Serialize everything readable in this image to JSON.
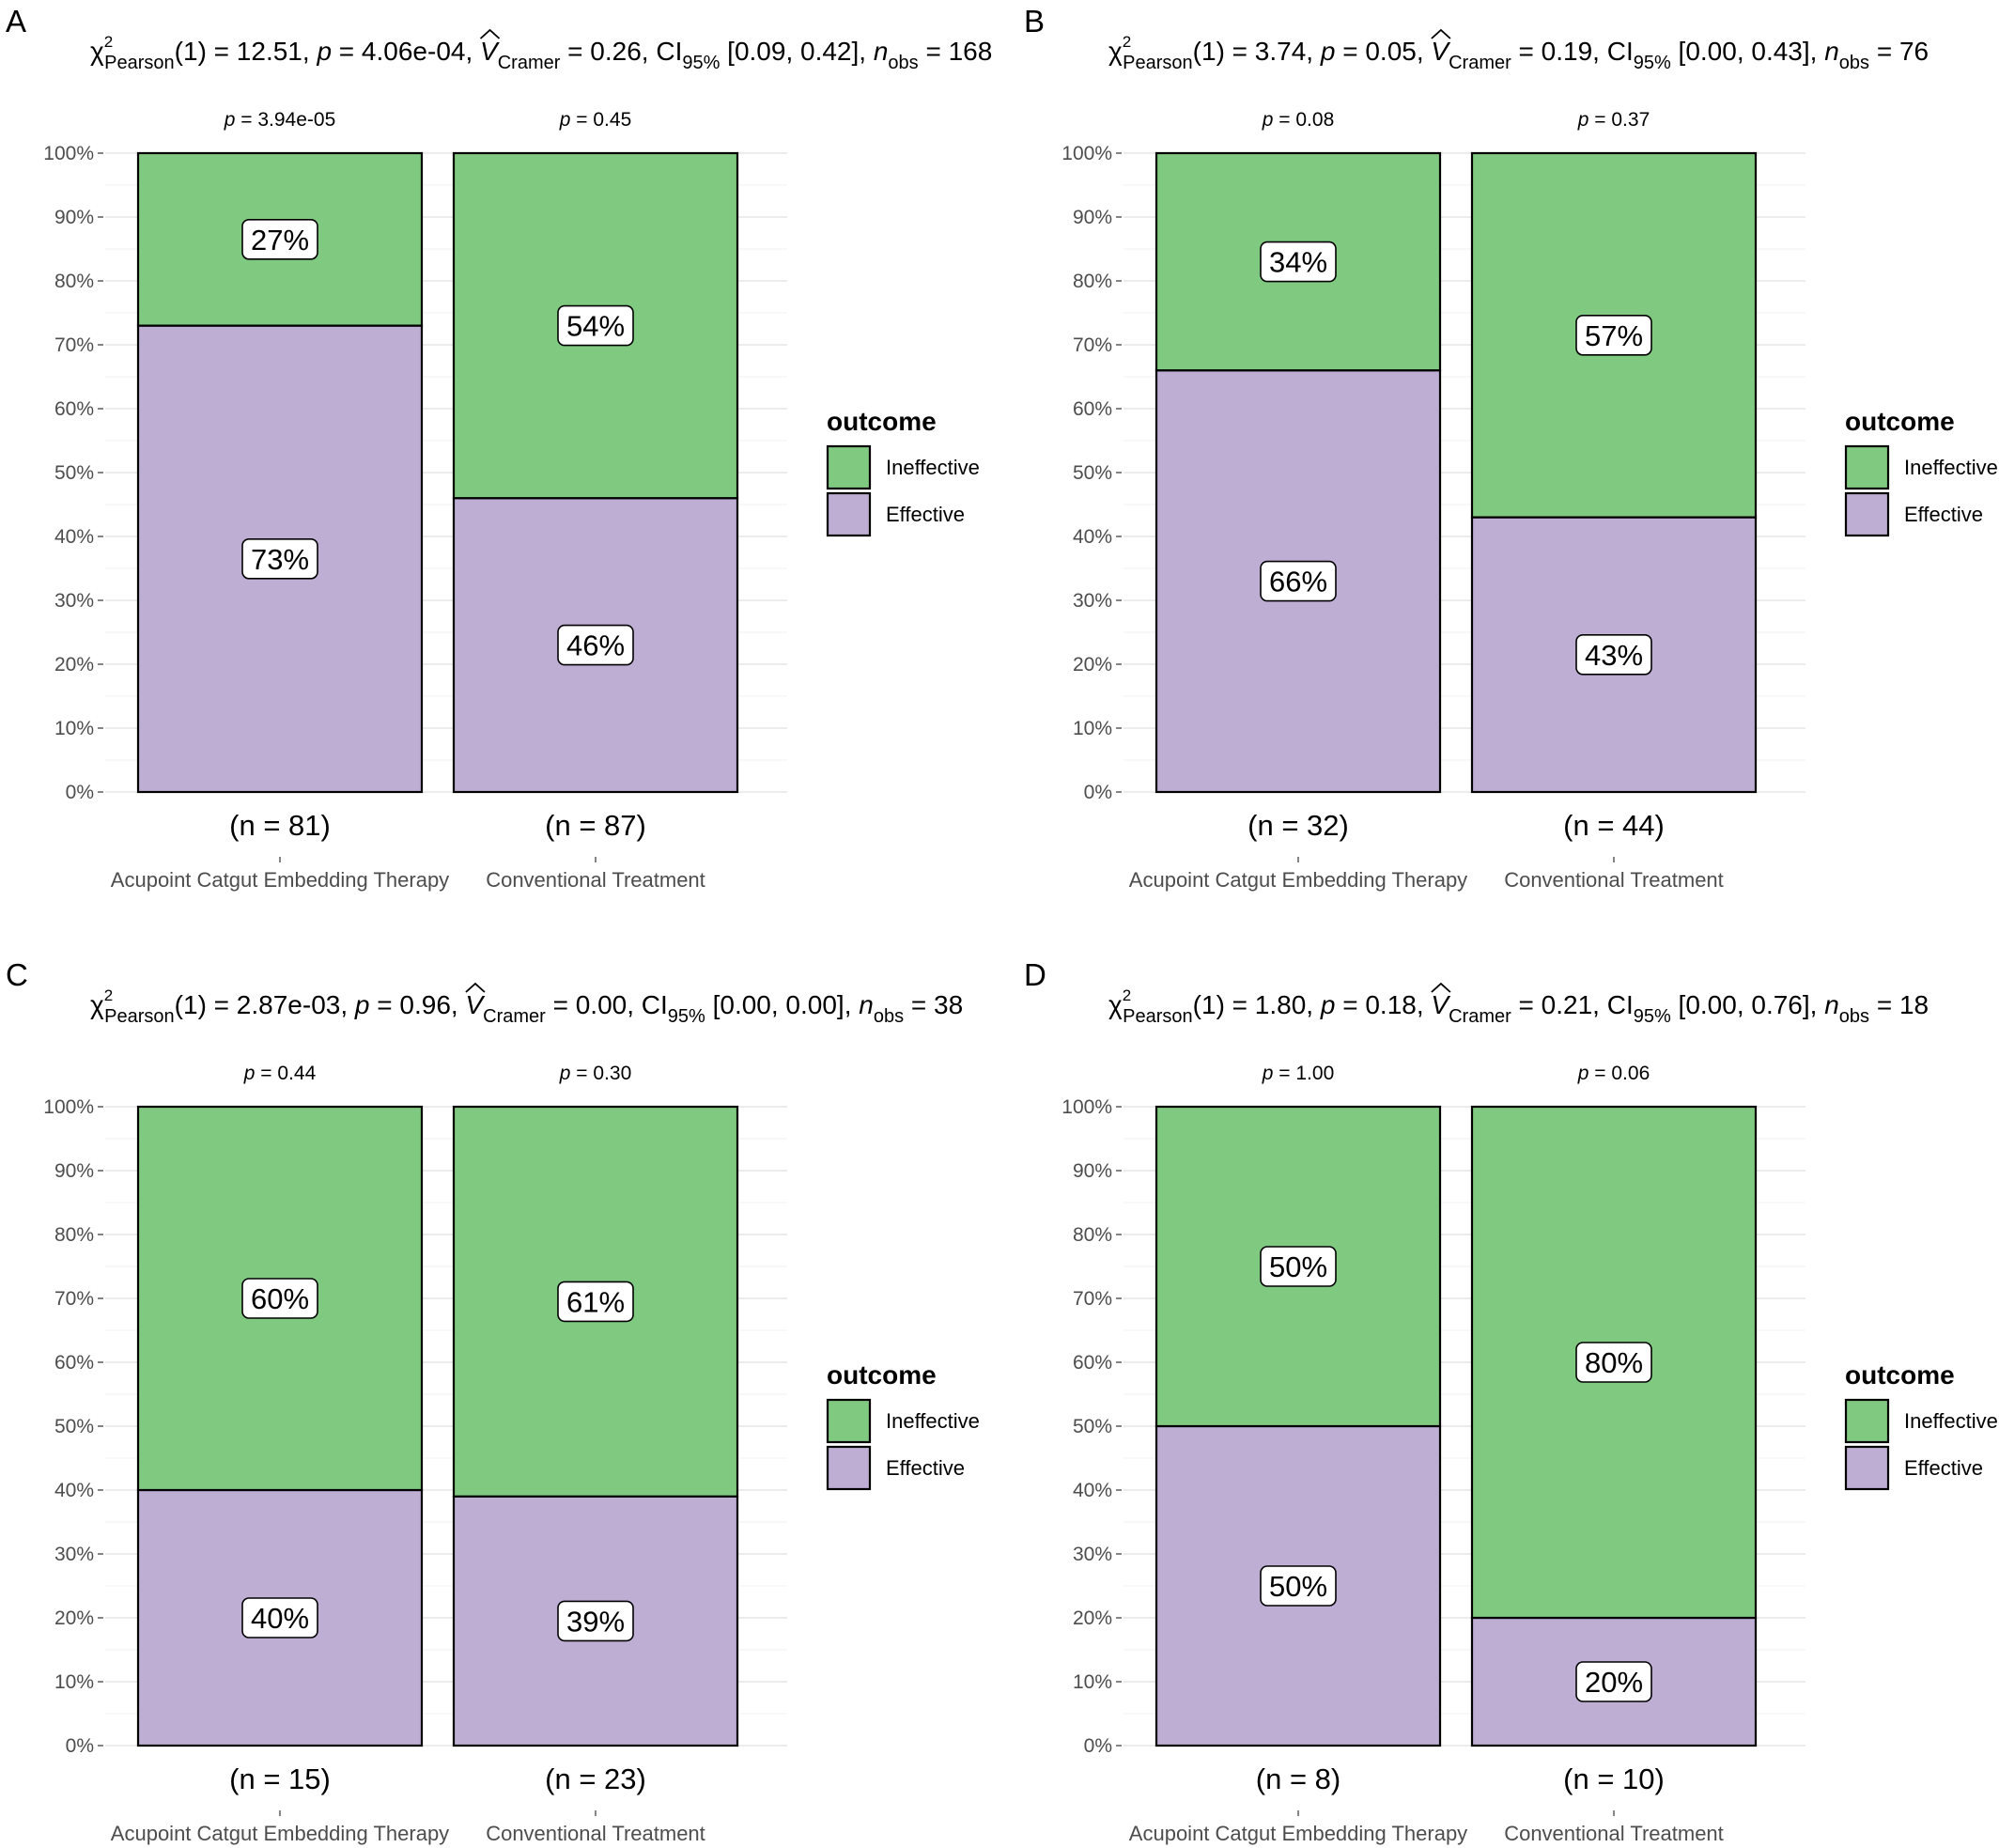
{
  "chart_data": [
    {
      "type": "bar",
      "stacked": true,
      "panel": "A",
      "subtitle": {
        "chi2_sup": "2",
        "chi2_sub": "Pearson",
        "chi2_rest": "(1) = 12.51, ",
        "p_rest": " = 4.06e-04, ",
        "v_sub": "Cramer",
        "v_rest": " = 0.26, CI",
        "ci_sub": "95%",
        "ci_rest": " [0.09, 0.42], ",
        "n_sub": "obs",
        "n_rest": " = 168"
      },
      "categories": [
        "Acupoint Catgut Embedding Therapy",
        "Conventional Treatment"
      ],
      "n_labels": [
        "(n = 81)",
        "(n = 87)"
      ],
      "p_labels": [
        " = 3.94e-05",
        " = 0.45"
      ],
      "series": [
        {
          "name": "Effective",
          "values": [
            73,
            46
          ],
          "labels": [
            "73%",
            "46%"
          ]
        },
        {
          "name": "Ineffective",
          "values": [
            27,
            54
          ],
          "labels": [
            "27%",
            "54%"
          ]
        }
      ],
      "ylim": [
        0,
        100
      ]
    },
    {
      "type": "bar",
      "stacked": true,
      "panel": "B",
      "subtitle": {
        "chi2_sup": "2",
        "chi2_sub": "Pearson",
        "chi2_rest": "(1) = 3.74, ",
        "p_rest": " = 0.05, ",
        "v_sub": "Cramer",
        "v_rest": " = 0.19, CI",
        "ci_sub": "95%",
        "ci_rest": " [0.00, 0.43], ",
        "n_sub": "obs",
        "n_rest": " = 76"
      },
      "categories": [
        "Acupoint Catgut Embedding Therapy",
        "Conventional Treatment"
      ],
      "n_labels": [
        "(n = 32)",
        "(n = 44)"
      ],
      "p_labels": [
        " = 0.08",
        " = 0.37"
      ],
      "series": [
        {
          "name": "Effective",
          "values": [
            66,
            43
          ],
          "labels": [
            "66%",
            "43%"
          ]
        },
        {
          "name": "Ineffective",
          "values": [
            34,
            57
          ],
          "labels": [
            "34%",
            "57%"
          ]
        }
      ],
      "ylim": [
        0,
        100
      ]
    },
    {
      "type": "bar",
      "stacked": true,
      "panel": "C",
      "subtitle": {
        "chi2_sup": "2",
        "chi2_sub": "Pearson",
        "chi2_rest": "(1) = 2.87e-03, ",
        "p_rest": " = 0.96, ",
        "v_sub": "Cramer",
        "v_rest": " = 0.00, CI",
        "ci_sub": "95%",
        "ci_rest": " [0.00, 0.00], ",
        "n_sub": "obs",
        "n_rest": " = 38"
      },
      "categories": [
        "Acupoint Catgut Embedding Therapy",
        "Conventional Treatment"
      ],
      "n_labels": [
        "(n = 15)",
        "(n = 23)"
      ],
      "p_labels": [
        " = 0.44",
        " = 0.30"
      ],
      "series": [
        {
          "name": "Effective",
          "values": [
            40,
            39
          ],
          "labels": [
            "40%",
            "39%"
          ]
        },
        {
          "name": "Ineffective",
          "values": [
            60,
            61
          ],
          "labels": [
            "60%",
            "61%"
          ]
        }
      ],
      "ylim": [
        0,
        100
      ]
    },
    {
      "type": "bar",
      "stacked": true,
      "panel": "D",
      "subtitle": {
        "chi2_sup": "2",
        "chi2_sub": "Pearson",
        "chi2_rest": "(1) = 1.80, ",
        "p_rest": " = 0.18, ",
        "v_sub": "Cramer",
        "v_rest": " = 0.21, CI",
        "ci_sub": "95%",
        "ci_rest": " [0.00, 0.76], ",
        "n_sub": "obs",
        "n_rest": " = 18"
      },
      "categories": [
        "Acupoint Catgut Embedding Therapy",
        "Conventional Treatment"
      ],
      "n_labels": [
        "(n = 8)",
        "(n = 10)"
      ],
      "p_labels": [
        " = 1.00",
        " = 0.06"
      ],
      "series": [
        {
          "name": "Effective",
          "values": [
            50,
            20
          ],
          "labels": [
            "50%",
            "20%"
          ]
        },
        {
          "name": "Ineffective",
          "values": [
            50,
            80
          ],
          "labels": [
            "50%",
            "80%"
          ]
        }
      ],
      "ylim": [
        0,
        100
      ]
    }
  ],
  "y_ticks": [
    "0%",
    "10%",
    "20%",
    "30%",
    "40%",
    "50%",
    "60%",
    "70%",
    "80%",
    "90%",
    "100%"
  ],
  "legend": {
    "title": "outcome",
    "items": [
      {
        "name": "Ineffective",
        "color": "#80c980"
      },
      {
        "name": "Effective",
        "color": "#beaed4"
      }
    ]
  },
  "colors": {
    "Effective": "#beaed4",
    "Ineffective": "#80c980"
  }
}
